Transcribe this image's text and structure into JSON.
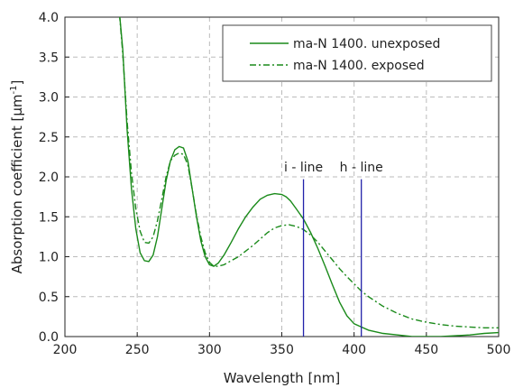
{
  "chart_data": {
    "type": "line",
    "title": "",
    "xlabel": "Wavelength [nm]",
    "ylabel": "Absorption coefficient [µm",
    "ylabel_sup": "-1",
    "ylabel_end": "]",
    "xlim": [
      200,
      500
    ],
    "ylim": [
      0.0,
      4.0
    ],
    "x_ticks": [
      200,
      250,
      300,
      350,
      400,
      450,
      500
    ],
    "y_ticks": [
      0.0,
      0.5,
      1.0,
      1.5,
      2.0,
      2.5,
      3.0,
      3.5,
      4.0
    ],
    "x_tick_labels": [
      "200",
      "250",
      "300",
      "350",
      "400",
      "450",
      "500"
    ],
    "y_tick_labels": [
      "0.0",
      "0.5",
      "1.0",
      "1.5",
      "2.0",
      "2.5",
      "3.0",
      "3.5",
      "4.0"
    ],
    "grid": true,
    "legend_position": "top-right",
    "colors": {
      "series": "#1a8a1a",
      "marker_lines": "#2222aa"
    },
    "series": [
      {
        "name": "ma-N 1400. unexposed",
        "style": "solid",
        "x": [
          237,
          240,
          243,
          246,
          249,
          252,
          255,
          258,
          261,
          264,
          267,
          270,
          273,
          276,
          279,
          282,
          285,
          288,
          291,
          294,
          297,
          300,
          303,
          306,
          310,
          315,
          320,
          325,
          330,
          335,
          340,
          345,
          350,
          353,
          356,
          360,
          365,
          370,
          375,
          380,
          385,
          390,
          395,
          400,
          405,
          410,
          420,
          430,
          440,
          450,
          460,
          470,
          480,
          490,
          500
        ],
        "y": [
          4.2,
          3.6,
          2.6,
          1.85,
          1.35,
          1.05,
          0.95,
          0.94,
          1.02,
          1.25,
          1.6,
          1.95,
          2.2,
          2.34,
          2.38,
          2.36,
          2.2,
          1.85,
          1.5,
          1.2,
          1.0,
          0.9,
          0.88,
          0.92,
          1.02,
          1.18,
          1.35,
          1.5,
          1.62,
          1.72,
          1.77,
          1.79,
          1.78,
          1.75,
          1.7,
          1.6,
          1.47,
          1.3,
          1.1,
          0.88,
          0.65,
          0.43,
          0.26,
          0.16,
          0.12,
          0.08,
          0.04,
          0.02,
          0.0,
          0.0,
          0.0,
          0.01,
          0.02,
          0.04,
          0.05
        ]
      },
      {
        "name": "ma-N 1400. exposed",
        "style": "dashdot",
        "x": [
          237,
          240,
          243,
          246,
          249,
          252,
          255,
          258,
          261,
          264,
          267,
          270,
          273,
          276,
          279,
          282,
          285,
          288,
          291,
          294,
          297,
          300,
          303,
          306,
          310,
          315,
          320,
          325,
          330,
          335,
          340,
          345,
          350,
          355,
          360,
          365,
          370,
          375,
          380,
          385,
          390,
          395,
          400,
          405,
          410,
          420,
          430,
          440,
          450,
          460,
          470,
          480,
          490,
          500
        ],
        "y": [
          4.2,
          3.55,
          2.7,
          2.05,
          1.6,
          1.32,
          1.18,
          1.17,
          1.25,
          1.45,
          1.72,
          2.0,
          2.2,
          2.27,
          2.3,
          2.28,
          2.15,
          1.85,
          1.52,
          1.25,
          1.05,
          0.93,
          0.88,
          0.88,
          0.9,
          0.95,
          1.0,
          1.07,
          1.14,
          1.22,
          1.3,
          1.36,
          1.39,
          1.4,
          1.38,
          1.34,
          1.27,
          1.18,
          1.07,
          0.96,
          0.85,
          0.75,
          0.66,
          0.57,
          0.5,
          0.38,
          0.29,
          0.22,
          0.18,
          0.15,
          0.13,
          0.12,
          0.11,
          0.11
        ]
      }
    ],
    "annotations": [
      {
        "label": "i - line",
        "x": 365
      },
      {
        "label": "h - line",
        "x": 405
      }
    ]
  }
}
